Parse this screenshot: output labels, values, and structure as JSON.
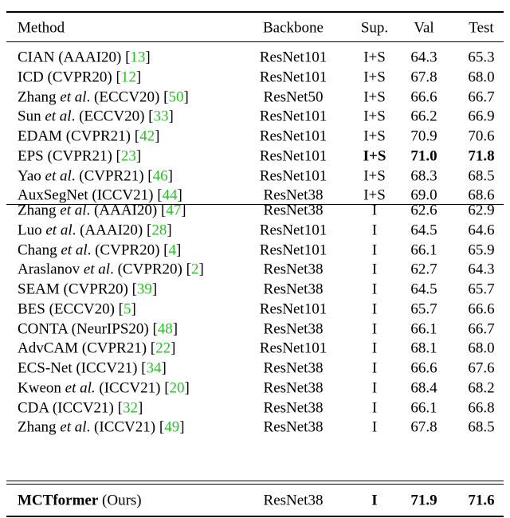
{
  "table": {
    "header": [
      "Method",
      "Backbone",
      "Sup.",
      "Val",
      "Test"
    ],
    "groups": [
      [
        {
          "method": [
            {
              "t": "CIAN (AAAI20) ["
            },
            {
              "c": "13"
            },
            {
              "t": "]"
            }
          ],
          "cells": [
            "ResNet101",
            "I+S",
            "64.3",
            "65.3"
          ]
        },
        {
          "method": [
            {
              "t": "ICD (CVPR20) ["
            },
            {
              "c": "12"
            },
            {
              "t": "]"
            }
          ],
          "cells": [
            "ResNet101",
            "I+S",
            "67.8",
            "68.0"
          ]
        },
        {
          "method": [
            {
              "t": "Zhang "
            },
            {
              "i": "et al"
            },
            {
              "t": ". (ECCV20) ["
            },
            {
              "c": "50"
            },
            {
              "t": "]"
            }
          ],
          "cells": [
            "ResNet50",
            "I+S",
            "66.6",
            "66.7"
          ]
        },
        {
          "method": [
            {
              "t": "Sun "
            },
            {
              "i": "et al"
            },
            {
              "t": ". (ECCV20) ["
            },
            {
              "c": "33"
            },
            {
              "t": "]"
            }
          ],
          "cells": [
            "ResNet101",
            "I+S",
            "66.2",
            "66.9"
          ]
        },
        {
          "method": [
            {
              "t": "EDAM (CVPR21) ["
            },
            {
              "c": "42"
            },
            {
              "t": "]"
            }
          ],
          "cells": [
            "ResNet101",
            "I+S",
            "70.9",
            "70.6"
          ]
        },
        {
          "method": [
            {
              "t": "EPS (CVPR21) ["
            },
            {
              "c": "23"
            },
            {
              "t": "]"
            }
          ],
          "cells": [
            "ResNet101",
            "I+S",
            "71.0",
            "71.8"
          ],
          "bold": [
            1,
            2,
            3
          ]
        },
        {
          "method": [
            {
              "t": "Yao "
            },
            {
              "i": "et al"
            },
            {
              "t": ". (CVPR21) ["
            },
            {
              "c": "46"
            },
            {
              "t": "]"
            }
          ],
          "cells": [
            "ResNet101",
            "I+S",
            "68.3",
            "68.5"
          ]
        },
        {
          "method": [
            {
              "t": "AuxSegNet (ICCV21) ["
            },
            {
              "c": "44"
            },
            {
              "t": "]"
            }
          ],
          "cells": [
            "ResNet38",
            "I+S",
            "69.0",
            "68.6"
          ]
        }
      ],
      [
        {
          "method": [
            {
              "t": "Zhang "
            },
            {
              "i": "et al"
            },
            {
              "t": ". (AAAI20) ["
            },
            {
              "c": "47"
            },
            {
              "t": "]"
            }
          ],
          "cells": [
            "ResNet38",
            "I",
            "62.6",
            "62.9"
          ]
        },
        {
          "method": [
            {
              "t": "Luo "
            },
            {
              "i": "et al"
            },
            {
              "t": ". (AAAI20) ["
            },
            {
              "c": "28"
            },
            {
              "t": "]"
            }
          ],
          "cells": [
            "ResNet101",
            "I",
            "64.5",
            "64.6"
          ]
        },
        {
          "method": [
            {
              "t": "Chang "
            },
            {
              "i": "et al"
            },
            {
              "t": ". (CVPR20) ["
            },
            {
              "c": "4"
            },
            {
              "t": "]"
            }
          ],
          "cells": [
            "ResNet101",
            "I",
            "66.1",
            "65.9"
          ]
        },
        {
          "method": [
            {
              "t": "Araslanov "
            },
            {
              "i": "et al"
            },
            {
              "t": ". (CVPR20) ["
            },
            {
              "c": "2"
            },
            {
              "t": "]"
            }
          ],
          "cells": [
            "ResNet38",
            "I",
            "62.7",
            "64.3"
          ]
        },
        {
          "method": [
            {
              "t": "SEAM (CVPR20) ["
            },
            {
              "c": "39"
            },
            {
              "t": "]"
            }
          ],
          "cells": [
            "ResNet38",
            "I",
            "64.5",
            "65.7"
          ]
        },
        {
          "method": [
            {
              "t": "BES (ECCV20) ["
            },
            {
              "c": "5"
            },
            {
              "t": "]"
            }
          ],
          "cells": [
            "ResNet101",
            "I",
            "65.7",
            "66.6"
          ]
        },
        {
          "method": [
            {
              "t": "CONTA (NeurIPS20) ["
            },
            {
              "c": "48"
            },
            {
              "t": "]"
            }
          ],
          "cells": [
            "ResNet38",
            "I",
            "66.1",
            "66.7"
          ]
        },
        {
          "method": [
            {
              "t": "AdvCAM (CVPR21) ["
            },
            {
              "c": "22"
            },
            {
              "t": "]"
            }
          ],
          "cells": [
            "ResNet101",
            "I",
            "68.1",
            "68.0"
          ]
        },
        {
          "method": [
            {
              "t": "ECS-Net (ICCV21) ["
            },
            {
              "c": "34"
            },
            {
              "t": "]"
            }
          ],
          "cells": [
            "ResNet38",
            "I",
            "66.6",
            "67.6"
          ]
        },
        {
          "method": [
            {
              "t": "Kweon "
            },
            {
              "i": "et al."
            },
            {
              "t": " (ICCV21) ["
            },
            {
              "c": "20"
            },
            {
              "t": "]"
            }
          ],
          "cells": [
            "ResNet38",
            "I",
            "68.4",
            "68.2"
          ]
        },
        {
          "method": [
            {
              "t": "CDA (ICCV21) ["
            },
            {
              "c": "32"
            },
            {
              "t": "]"
            }
          ],
          "cells": [
            "ResNet38",
            "I",
            "66.1",
            "66.8"
          ]
        },
        {
          "method": [
            {
              "t": "Zhang "
            },
            {
              "i": "et al"
            },
            {
              "t": ". (ICCV21) ["
            },
            {
              "c": "49"
            },
            {
              "t": "]"
            }
          ],
          "cells": [
            "ResNet38",
            "I",
            "67.8",
            "68.5"
          ]
        }
      ],
      [
        {
          "method": [
            {
              "b": "MCTformer"
            },
            {
              "t": " (Ours)"
            }
          ],
          "cells": [
            "ResNet38",
            "I",
            "71.9",
            "71.6"
          ],
          "bold": [
            1,
            2,
            3
          ]
        }
      ]
    ]
  }
}
